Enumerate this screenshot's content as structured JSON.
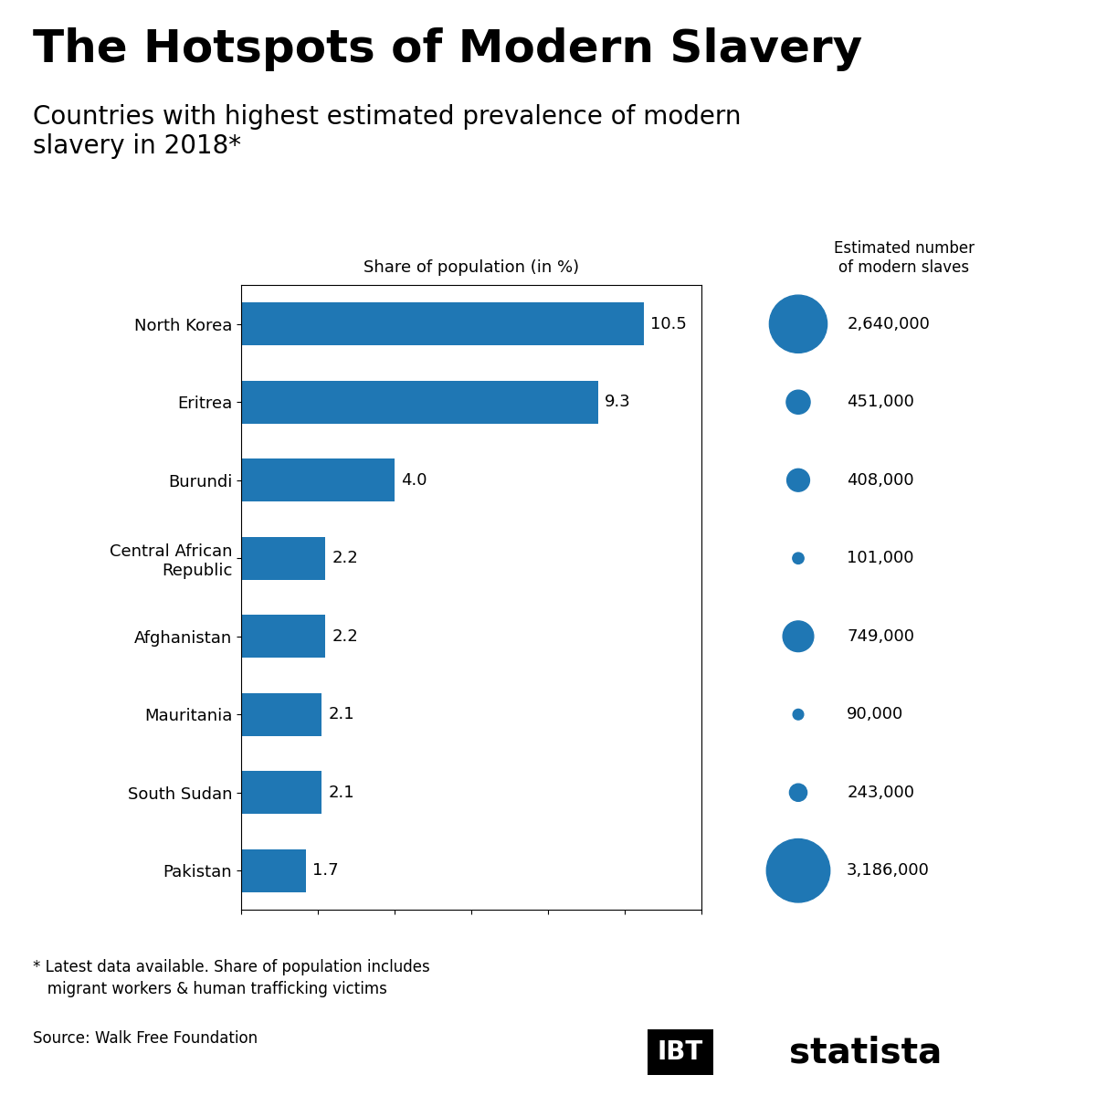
{
  "title": "The Hotspots of Modern Slavery",
  "subtitle": "Countries with highest estimated prevalence of modern\nslavery in 2018*",
  "footnote": "* Latest data available. Share of population includes\n   migrant workers & human trafficking victims",
  "source": "Source: Walk Free Foundation",
  "annotations": [
    "IBT",
    "statista"
  ],
  "chart_data": [
    {
      "type": "bar",
      "orientation": "horizontal",
      "title": "Share of population (in %)",
      "categories": [
        "North Korea",
        "Eritrea",
        "Burundi",
        "Central African\nRepublic",
        "Afghanistan",
        "Mauritania",
        "South Sudan",
        "Pakistan"
      ],
      "values": [
        10.5,
        9.3,
        4.0,
        2.2,
        2.2,
        2.1,
        2.1,
        1.7
      ],
      "value_labels": [
        "10.5",
        "9.3",
        "4.0",
        "2.2",
        "2.2",
        "2.1",
        "2.1",
        "1.7"
      ],
      "data_labels": true,
      "xlim": [
        0,
        12
      ],
      "xticks": [
        0,
        2,
        4,
        6,
        8,
        10,
        12
      ],
      "tick_labels": "y",
      "grid": false
    },
    {
      "type": "bubble",
      "title": "Estimated number\nof modern slaves",
      "categories": [
        "North Korea",
        "Eritrea",
        "Burundi",
        "Central African\nRepublic",
        "Afghanistan",
        "Mauritania",
        "South Sudan",
        "Pakistan"
      ],
      "values": [
        2640000,
        451000,
        408000,
        101000,
        749000,
        90000,
        243000,
        3186000
      ],
      "value_labels": [
        "2,640,000",
        "451,000",
        "408,000",
        "101,000",
        "749,000",
        "90,000",
        "243,000",
        "3,186,000"
      ],
      "data_labels": true,
      "tick_labels": false,
      "grid": false
    }
  ]
}
